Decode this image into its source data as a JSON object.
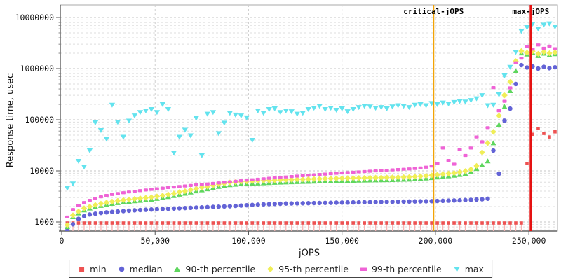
{
  "chart_data": {
    "type": "scatter",
    "title": "",
    "xlabel": "jOPS",
    "ylabel": "Response time, usec",
    "x_scale": "linear",
    "y_scale": "log",
    "xlim": [
      0,
      265500
    ],
    "ylim": [
      663,
      17600000
    ],
    "grid": true,
    "legend_position": "bottom",
    "x_tick_values": [
      0,
      50000,
      100000,
      150000,
      200000,
      250000
    ],
    "x_tick_labels": [
      "0",
      "50,000",
      "100,000",
      "150,000",
      "200,000",
      "250,000"
    ],
    "y_tick_values": [
      1000,
      10000,
      100000,
      1000000,
      10000000
    ],
    "y_tick_labels": [
      "1000",
      "10000",
      "100000",
      "1000000",
      "10000000"
    ],
    "x": [
      3000,
      6000,
      9000,
      12000,
      15000,
      18000,
      21000,
      24000,
      27000,
      30000,
      33000,
      36000,
      39000,
      42000,
      45000,
      48000,
      51000,
      54000,
      57000,
      60000,
      63000,
      66000,
      69000,
      72000,
      75000,
      78000,
      81000,
      84000,
      87000,
      90000,
      93000,
      96000,
      99000,
      102000,
      105000,
      108000,
      111000,
      114000,
      117000,
      120000,
      123000,
      126000,
      129000,
      132000,
      135000,
      138000,
      141000,
      144000,
      147000,
      150000,
      153000,
      156000,
      159000,
      162000,
      165000,
      168000,
      171000,
      174000,
      177000,
      180000,
      183000,
      186000,
      189000,
      192000,
      195000,
      198000,
      201000,
      204000,
      207000,
      210000,
      213000,
      216000,
      219000,
      222000,
      225000,
      228000,
      231000,
      234000,
      237000,
      240000,
      243000,
      246000,
      249000,
      252000,
      255000,
      258000,
      261000,
      264000
    ],
    "series": [
      {
        "name": "min",
        "marker": "square",
        "color": "#ee5252",
        "stem_color": "#f7b4b4",
        "values": [
          954,
          954,
          954,
          954,
          954,
          954,
          954,
          954,
          954,
          954,
          954,
          954,
          954,
          954,
          954,
          954,
          954,
          954,
          954,
          954,
          954,
          954,
          954,
          954,
          954,
          954,
          954,
          954,
          954,
          954,
          954,
          954,
          954,
          954,
          954,
          954,
          954,
          954,
          954,
          954,
          954,
          954,
          954,
          954,
          954,
          954,
          954,
          954,
          954,
          954,
          954,
          954,
          954,
          954,
          954,
          954,
          954,
          954,
          954,
          954,
          954,
          954,
          954,
          954,
          954,
          954,
          954,
          954,
          954,
          954,
          954,
          954,
          954,
          954,
          954,
          954,
          954,
          954,
          954,
          954,
          954,
          954,
          14000,
          52000,
          67000,
          54000,
          46000,
          58000
        ]
      },
      {
        "name": "median",
        "marker": "circle",
        "color": "#6363d6",
        "values": [
          680,
          900,
          1150,
          1300,
          1400,
          1450,
          1500,
          1540,
          1570,
          1600,
          1630,
          1660,
          1690,
          1710,
          1730,
          1750,
          1770,
          1790,
          1810,
          1830,
          1850,
          1870,
          1890,
          1910,
          1930,
          1950,
          1970,
          1990,
          2010,
          2030,
          2060,
          2090,
          2120,
          2150,
          2180,
          2210,
          2230,
          2250,
          2270,
          2290,
          2300,
          2310,
          2320,
          2330,
          2340,
          2350,
          2360,
          2370,
          2380,
          2390,
          2400,
          2410,
          2420,
          2430,
          2440,
          2450,
          2460,
          2470,
          2480,
          2490,
          2500,
          2510,
          2520,
          2530,
          2540,
          2550,
          2570,
          2590,
          2610,
          2630,
          2650,
          2680,
          2710,
          2740,
          2780,
          2850,
          25000,
          8800,
          96000,
          165000,
          500000,
          1170000,
          1050000,
          1100000,
          1000000,
          1080000,
          1020000,
          1060000
        ]
      },
      {
        "name": "90-th percentile",
        "marker": "triangle-up",
        "color": "#5ed65e",
        "values": [
          800,
          1250,
          1480,
          1700,
          1850,
          1980,
          2080,
          2180,
          2280,
          2360,
          2430,
          2500,
          2560,
          2620,
          2680,
          2750,
          2850,
          2950,
          3100,
          3250,
          3450,
          3600,
          3800,
          4000,
          4200,
          4400,
          4650,
          4900,
          5100,
          5300,
          5400,
          5500,
          5570,
          5640,
          5700,
          5760,
          5820,
          5880,
          5930,
          5980,
          6030,
          6080,
          6120,
          6160,
          6200,
          6240,
          6280,
          6320,
          6360,
          6400,
          6430,
          6460,
          6490,
          6520,
          6550,
          6580,
          6610,
          6640,
          6670,
          6700,
          6750,
          6800,
          6900,
          7000,
          7150,
          7300,
          7500,
          7700,
          7900,
          8100,
          8400,
          8800,
          9500,
          11000,
          13000,
          15500,
          35000,
          80000,
          180000,
          365000,
          900000,
          2000000,
          1900000,
          2050000,
          1780000,
          1980000,
          1850000,
          1930000
        ]
      },
      {
        "name": "95-th percentile",
        "marker": "diamond",
        "color": "#f0ee57",
        "values": [
          870,
          1350,
          1600,
          1850,
          2000,
          2150,
          2280,
          2400,
          2500,
          2600,
          2680,
          2760,
          2830,
          2900,
          2970,
          3050,
          3160,
          3280,
          3450,
          3620,
          3840,
          4000,
          4250,
          4480,
          4700,
          4930,
          5200,
          5480,
          5700,
          5920,
          6030,
          6140,
          6220,
          6300,
          6370,
          6440,
          6500,
          6560,
          6620,
          6680,
          6730,
          6780,
          6830,
          6880,
          6930,
          6980,
          7020,
          7060,
          7100,
          7150,
          7190,
          7220,
          7260,
          7290,
          7330,
          7360,
          7390,
          7420,
          7460,
          7500,
          7550,
          7610,
          7720,
          7830,
          8000,
          8170,
          8400,
          8620,
          8850,
          9100,
          9450,
          9900,
          10700,
          12500,
          23000,
          35000,
          58000,
          120000,
          300000,
          550000,
          1400000,
          2200000,
          2050000,
          2180000,
          1950000,
          2120000,
          2000000,
          2080000
        ]
      },
      {
        "name": "99-th percentile",
        "marker": "bar",
        "color": "#ef63d6",
        "values": [
          1250,
          1750,
          2100,
          2400,
          2650,
          2900,
          3100,
          3300,
          3450,
          3600,
          3730,
          3860,
          3980,
          4100,
          4220,
          4340,
          4460,
          4580,
          4700,
          4820,
          4940,
          5060,
          5180,
          5300,
          5420,
          5540,
          5670,
          5800,
          5950,
          6100,
          6250,
          6400,
          6550,
          6700,
          6850,
          7000,
          7150,
          7300,
          7450,
          7600,
          7750,
          7900,
          8050,
          8200,
          8350,
          8500,
          8650,
          8800,
          8950,
          9100,
          9250,
          9400,
          9550,
          9700,
          9850,
          10000,
          10150,
          10300,
          10450,
          10600,
          10750,
          10900,
          11100,
          11400,
          11800,
          12400,
          14000,
          28000,
          16000,
          13500,
          26000,
          20000,
          28000,
          46000,
          37000,
          70000,
          425000,
          150000,
          230000,
          420000,
          1300000,
          1600000,
          2700000,
          2400000,
          2900000,
          2500000,
          2750000,
          2450000
        ]
      },
      {
        "name": "max",
        "marker": "triangle-down",
        "color": "#63e3ee",
        "values": [
          4600,
          5600,
          15500,
          12000,
          25000,
          88000,
          62000,
          42000,
          195000,
          90000,
          46000,
          95000,
          120000,
          140000,
          150000,
          160000,
          140000,
          200000,
          160000,
          22500,
          46000,
          63000,
          49000,
          108000,
          20000,
          130000,
          140000,
          54000,
          87000,
          135000,
          125000,
          120000,
          110000,
          40000,
          150000,
          135000,
          160000,
          165000,
          140000,
          150000,
          145000,
          130000,
          135000,
          160000,
          170000,
          185000,
          160000,
          170000,
          155000,
          165000,
          145000,
          160000,
          175000,
          185000,
          180000,
          170000,
          175000,
          165000,
          180000,
          190000,
          185000,
          175000,
          195000,
          200000,
          190000,
          210000,
          200000,
          215000,
          205000,
          220000,
          230000,
          225000,
          240000,
          260000,
          300000,
          190000,
          195000,
          310000,
          730000,
          1070000,
          2100000,
          5400000,
          6400000,
          7500000,
          6000000,
          7200000,
          7600000,
          6600000
        ]
      }
    ],
    "annotations": [
      {
        "label": "critical-jOPS",
        "x": 199000,
        "color": "#f2a306"
      },
      {
        "label": "max-jOPS",
        "x": 251000,
        "color": "#e51212"
      }
    ],
    "colors": {
      "grid_minor": "#dedede",
      "grid_major": "#c6c6c6",
      "grid_vertical": "#cfcfcf",
      "plot_border": "#aaaaaa",
      "axis": "#444444",
      "text": "#111111"
    }
  },
  "legend": {
    "items": [
      {
        "label": "min"
      },
      {
        "label": "median"
      },
      {
        "label": "90-th percentile"
      },
      {
        "label": "95-th percentile"
      },
      {
        "label": "99-th percentile"
      },
      {
        "label": "max"
      }
    ]
  }
}
